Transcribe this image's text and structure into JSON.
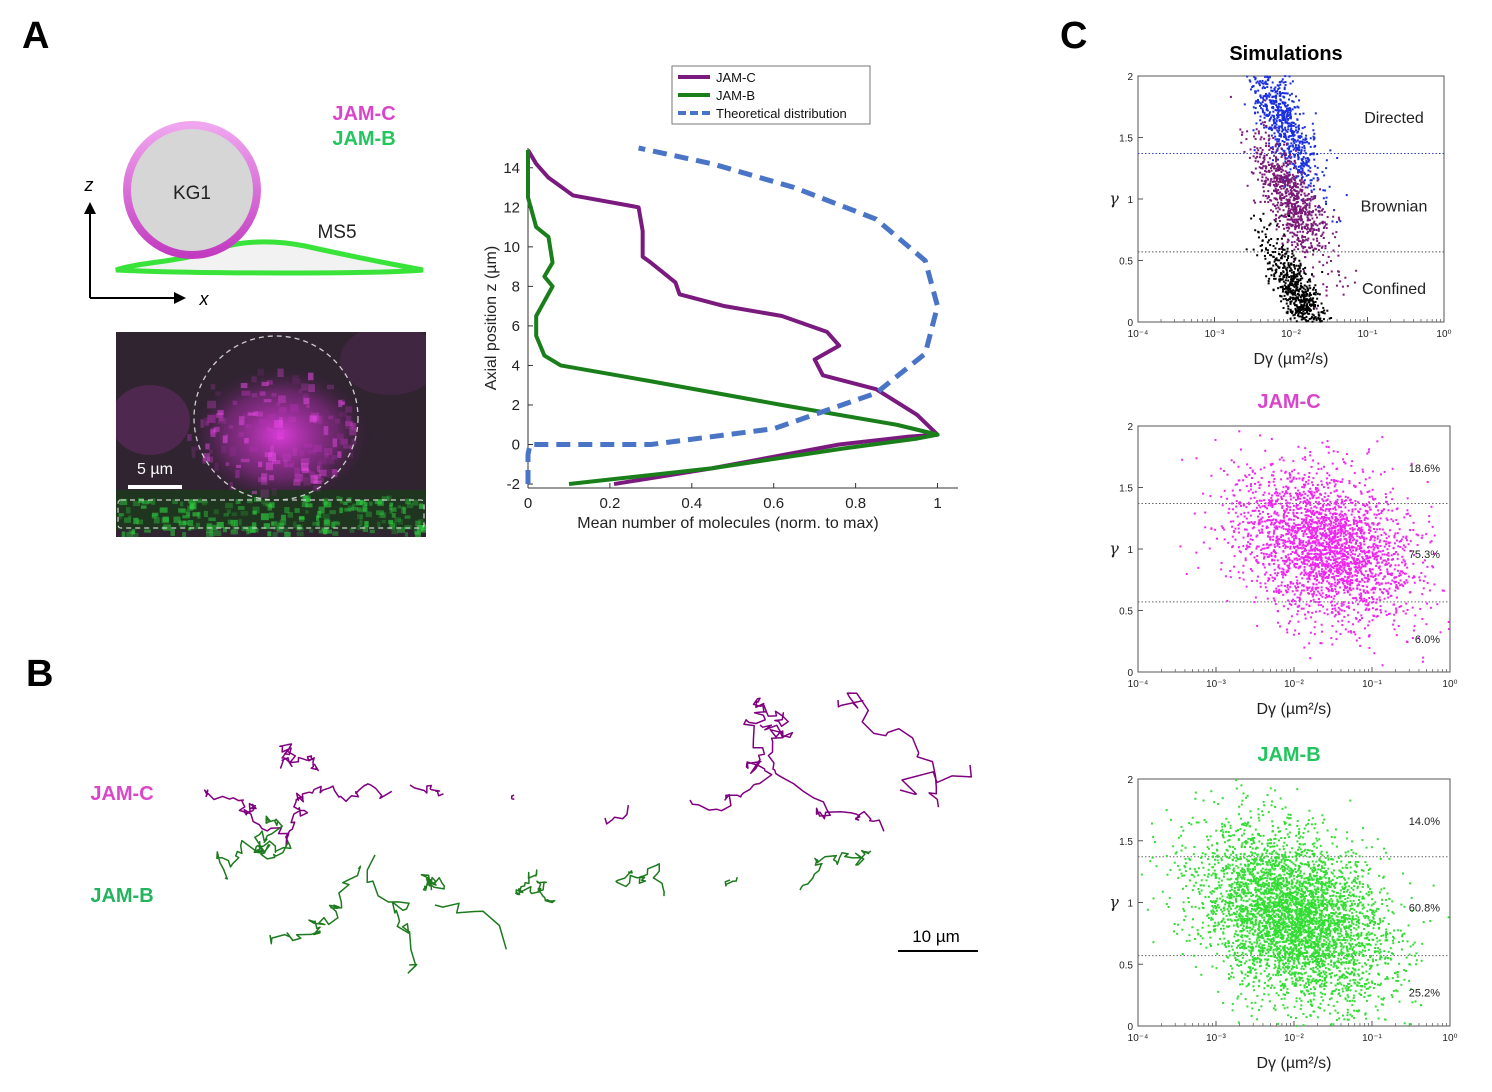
{
  "panels": {
    "A": "A",
    "B": "B",
    "C": "C"
  },
  "schematic": {
    "cell_round": "KG1",
    "cell_flat": "MS5",
    "label_jamc": "JAM-C",
    "label_jamb": "JAM-B",
    "axis_z": "z",
    "axis_x": "x",
    "scale_bar": "5 µm",
    "colors": {
      "jamc": "#d946c9",
      "jamb": "#22c55e",
      "kg1_fill": "#d6d6d6",
      "kg1_ring": "#d35bd1",
      "ms5_outline": "#3ae33a"
    }
  },
  "micrograph": {
    "description_icon": "fluorescence-image"
  },
  "chart_data": [
    {
      "id": "axial-profile",
      "type": "line",
      "xlabel": "Mean number of molecules (norm. to max)",
      "ylabel": "Axial position z (µm)",
      "xlim": [
        0,
        1.05
      ],
      "ylim": [
        -2.2,
        15
      ],
      "xticks": [
        "0",
        "0.2",
        "0.4",
        "0.6",
        "0.8",
        "1"
      ],
      "yticks": [
        "-2",
        "0",
        "2",
        "4",
        "6",
        "8",
        "10",
        "12",
        "14"
      ],
      "legend": [
        "JAM-C",
        "JAM-B",
        "Theoretical distribution"
      ],
      "legend_position": "top",
      "series": [
        {
          "name": "JAM-C",
          "color": "#7b1a7e",
          "x": [
            0.21,
            0.45,
            0.76,
            0.93,
            1.0,
            0.95,
            0.85,
            0.72,
            0.7,
            0.76,
            0.73,
            0.62,
            0.48,
            0.37,
            0.36,
            0.3,
            0.28,
            0.28,
            0.27,
            0.11,
            0.05,
            0.02,
            0.0
          ],
          "y": [
            -2.0,
            -1.2,
            0.0,
            0.4,
            0.5,
            1.5,
            2.8,
            3.5,
            4.3,
            5.0,
            5.7,
            6.5,
            7.0,
            7.6,
            8.2,
            9.2,
            9.5,
            10.8,
            12.0,
            12.6,
            13.5,
            14.2,
            14.9
          ],
          "values_note_source": "estimated from axes"
        },
        {
          "name": "JAM-B",
          "color": "#1a7f1a",
          "x": [
            0.1,
            0.45,
            0.77,
            0.95,
            1.0,
            0.9,
            0.62,
            0.3,
            0.08,
            0.04,
            0.02,
            0.02,
            0.06,
            0.04,
            0.06,
            0.05,
            0.02,
            0.0,
            0.0
          ],
          "y": [
            -2.0,
            -1.2,
            -0.2,
            0.3,
            0.5,
            1.0,
            2.0,
            3.2,
            4.0,
            4.5,
            5.5,
            6.5,
            8.0,
            8.5,
            9.2,
            10.5,
            11.0,
            12.5,
            14.9
          ]
        },
        {
          "name": "Theoretical distribution",
          "color": "#4a74c5",
          "dashed": true,
          "x": [
            0.0,
            0.0,
            0.005,
            0.3,
            0.6,
            0.85,
            0.97,
            1.0,
            0.97,
            0.85,
            0.65,
            0.45,
            0.27
          ],
          "y": [
            -2.0,
            -0.5,
            0.0,
            0.0,
            0.8,
            2.6,
            4.6,
            7.0,
            9.3,
            11.4,
            13.0,
            14.2,
            15.0
          ]
        }
      ]
    },
    {
      "id": "simulations",
      "type": "scatter",
      "title": "Simulations",
      "xlabel": "Dγ (µm²/s)",
      "ylabel": "γ",
      "x_scale": "log",
      "xlim": [
        0.0001,
        1
      ],
      "ylim": [
        0,
        2
      ],
      "xticks": [
        "10⁻⁴",
        "10⁻³",
        "10⁻²",
        "10⁻¹",
        "10⁰"
      ],
      "yticks": [
        "0",
        "0.5",
        "1",
        "1.5",
        "2"
      ],
      "thresholds": [
        0.57,
        1.37
      ],
      "threshold_colors": [
        "#555555",
        "#3344cc"
      ],
      "region_labels": [
        "Directed",
        "Brownian",
        "Confined"
      ],
      "clusters": [
        {
          "name": "Directed",
          "color": "#1a2fe0",
          "center_log_x": -2.1,
          "center_y": 1.62,
          "spread_x": 0.25,
          "spread_y": 0.17,
          "slope": -0.9,
          "count": 700
        },
        {
          "name": "Brownian",
          "color": "#7a1a78",
          "center_log_x": -2.0,
          "center_y": 1.0,
          "spread_x": 0.25,
          "spread_y": 0.17,
          "slope": -0.8,
          "count": 800
        },
        {
          "name": "Confined",
          "color": "#000000",
          "center_log_x": -1.9,
          "center_y": 0.22,
          "spread_x": 0.22,
          "spread_y": 0.14,
          "slope": -0.9,
          "count": 700
        }
      ]
    },
    {
      "id": "jamc-scatter",
      "type": "scatter",
      "title": "JAM-C",
      "xlabel": "Dγ (µm²/s)",
      "ylabel": "γ",
      "x_scale": "log",
      "xlim": [
        0.0001,
        1
      ],
      "ylim": [
        0,
        2
      ],
      "xticks": [
        "10⁻⁴",
        "10⁻³",
        "10⁻²",
        "10⁻¹",
        "10⁰"
      ],
      "yticks": [
        "0",
        "0.5",
        "1",
        "1.5",
        "2"
      ],
      "thresholds": [
        0.57,
        1.37
      ],
      "percentages": [
        "18.6%",
        "75.3%",
        "6.0%"
      ],
      "color": "#ef26ef",
      "center_log_x": -1.6,
      "center_y": 1.02,
      "spread_x": 0.55,
      "spread_y": 0.3,
      "slope": -0.18,
      "count": 2600
    },
    {
      "id": "jamb-scatter",
      "type": "scatter",
      "title": "JAM-B",
      "xlabel": "Dγ (µm²/s)",
      "ylabel": "γ",
      "x_scale": "log",
      "xlim": [
        0.0001,
        1
      ],
      "ylim": [
        0,
        2
      ],
      "xticks": [
        "10⁻⁴",
        "10⁻³",
        "10⁻²",
        "10⁻¹",
        "10⁰"
      ],
      "yticks": [
        "0",
        "0.5",
        "1",
        "1.5",
        "2"
      ],
      "thresholds": [
        0.57,
        1.37
      ],
      "percentages": [
        "14.0%",
        "60.8%",
        "25.2%"
      ],
      "color": "#33dd33",
      "center_log_x": -2.0,
      "center_y": 0.88,
      "spread_x": 0.6,
      "spread_y": 0.33,
      "slope": -0.2,
      "count": 4200
    }
  ],
  "trajectories": {
    "label_jamc": "JAM-C",
    "label_jamb": "JAM-B",
    "scale_bar": "10 µm",
    "color_jamc": "#800080",
    "color_jamb": "#1e7a1e"
  }
}
